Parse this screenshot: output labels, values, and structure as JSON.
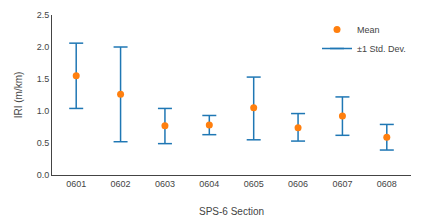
{
  "chart_data": {
    "type": "errorbar",
    "xlabel": "SPS-6 Section",
    "ylabel": "IRI (m/km)",
    "categories": [
      "0601",
      "0602",
      "0603",
      "0604",
      "0605",
      "0606",
      "0607",
      "0608"
    ],
    "series": [
      {
        "name": "Mean",
        "type": "scatter",
        "marker": "circle",
        "values": [
          1.55,
          1.26,
          0.77,
          0.78,
          1.05,
          0.74,
          0.92,
          0.59
        ]
      },
      {
        "name": "±1 Std. Dev.",
        "type": "errorbar",
        "upper": [
          2.06,
          2.0,
          1.04,
          0.93,
          1.53,
          0.96,
          1.22,
          0.79
        ],
        "lower": [
          1.04,
          0.52,
          0.49,
          0.63,
          0.55,
          0.53,
          0.62,
          0.39
        ]
      }
    ],
    "ylim": [
      0,
      2.5
    ],
    "yticks": [
      {
        "value": 0.0,
        "label": "0.0"
      },
      0.5,
      {
        "value": 1.0,
        "label": "1.0"
      },
      1.5,
      {
        "value": 2.0,
        "label": "2.0"
      },
      2.5
    ],
    "grid": false,
    "legend": "upper right"
  }
}
